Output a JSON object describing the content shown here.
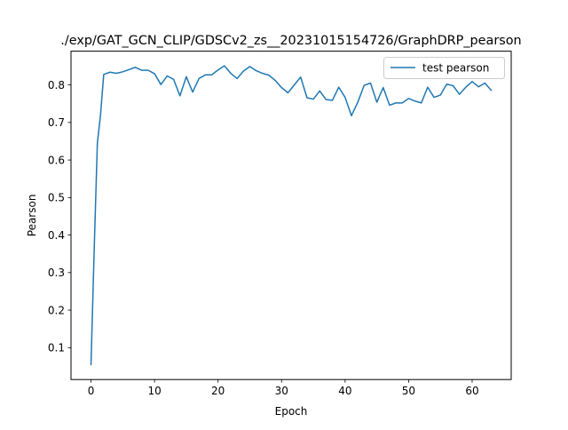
{
  "chart_data": {
    "type": "line",
    "title": "./exp/GAT_GCN_CLIP/GDSCv2_zs__20231015154726/GraphDRP_pearson",
    "xlabel": "Epoch",
    "ylabel": "Pearson",
    "xlim": [
      -3.15,
      66.15
    ],
    "ylim": [
      0.015,
      0.89
    ],
    "xticks": [
      0,
      10,
      20,
      30,
      40,
      50,
      60
    ],
    "yticks": [
      0.1,
      0.2,
      0.3,
      0.4,
      0.5,
      0.6,
      0.7,
      0.8
    ],
    "grid": false,
    "legend_position": "upper right",
    "series": [
      {
        "name": "test pearson",
        "color": "#1f77b4",
        "x": [
          0,
          0.5,
          1,
          1.5,
          2,
          3,
          4,
          5,
          6,
          7,
          8,
          9,
          10,
          11,
          12,
          13,
          14,
          15,
          16,
          17,
          18,
          19,
          20,
          21,
          22,
          23,
          24,
          25,
          26,
          27,
          28,
          29,
          30,
          31,
          32,
          33,
          34,
          35,
          36,
          37,
          38,
          39,
          40,
          41,
          42,
          43,
          44,
          45,
          46,
          47,
          48,
          49,
          50,
          51,
          52,
          53,
          54,
          55,
          56,
          57,
          58,
          59,
          60,
          61,
          62,
          63
        ],
        "y": [
          0.055,
          0.36,
          0.645,
          0.72,
          0.828,
          0.834,
          0.831,
          0.835,
          0.841,
          0.847,
          0.839,
          0.839,
          0.83,
          0.801,
          0.824,
          0.815,
          0.771,
          0.822,
          0.781,
          0.817,
          0.827,
          0.827,
          0.84,
          0.851,
          0.831,
          0.817,
          0.837,
          0.849,
          0.838,
          0.831,
          0.826,
          0.812,
          0.793,
          0.779,
          0.8,
          0.821,
          0.766,
          0.762,
          0.784,
          0.761,
          0.759,
          0.794,
          0.767,
          0.718,
          0.754,
          0.799,
          0.805,
          0.754,
          0.793,
          0.746,
          0.752,
          0.752,
          0.764,
          0.757,
          0.752,
          0.794,
          0.767,
          0.773,
          0.802,
          0.798,
          0.775,
          0.794,
          0.809,
          0.795,
          0.805,
          0.786
        ]
      }
    ]
  }
}
